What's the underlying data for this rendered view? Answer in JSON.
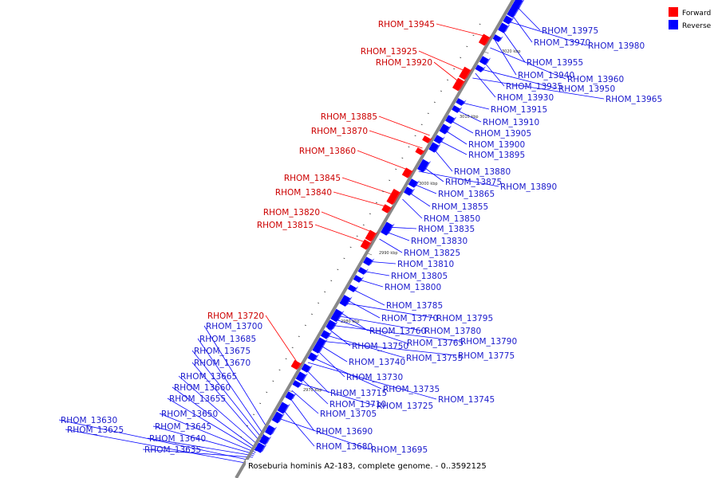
{
  "colors": {
    "forward": "#ff0000",
    "reverse": "#0000ff",
    "forward_label": "#cc0000",
    "reverse_label": "#1a1acc",
    "backbone": "#888888"
  },
  "legend": {
    "forward_label": "Forward",
    "reverse_label": "Reverse"
  },
  "caption": "Roseburia hominis A2-183, complete genome. - 0..3592125",
  "axis": {
    "tick_labels": [
      "2970 kbp",
      "2980 kbp",
      "2990 kbp",
      "3000 kbp",
      "3010 kbp",
      "3020 kbp"
    ]
  },
  "forward_genes": [
    "RHOM_13945",
    "RHOM_13925",
    "RHOM_13920",
    "RHOM_13885",
    "RHOM_13870",
    "RHOM_13860",
    "RHOM_13845",
    "RHOM_13840",
    "RHOM_13820",
    "RHOM_13815",
    "RHOM_13720"
  ],
  "reverse_genes": [
    "RHOM_13975",
    "RHOM_13970",
    "RHOM_13980",
    "RHOM_13955",
    "RHOM_13940",
    "RHOM_13960",
    "RHOM_13935",
    "RHOM_13950",
    "RHOM_13930",
    "RHOM_13965",
    "RHOM_13915",
    "RHOM_13910",
    "RHOM_13905",
    "RHOM_13900",
    "RHOM_13895",
    "RHOM_13880",
    "RHOM_13875",
    "RHOM_13890",
    "RHOM_13865",
    "RHOM_13855",
    "RHOM_13850",
    "RHOM_13835",
    "RHOM_13830",
    "RHOM_13825",
    "RHOM_13810",
    "RHOM_13805",
    "RHOM_13800",
    "RHOM_13785",
    "RHOM_13770",
    "RHOM_13795",
    "RHOM_13760",
    "RHOM_13780",
    "RHOM_13765",
    "RHOM_13790",
    "RHOM_13750",
    "RHOM_13755",
    "RHOM_13775",
    "RHOM_13740",
    "RHOM_13730",
    "RHOM_13735",
    "RHOM_13745",
    "RHOM_13715",
    "RHOM_13710",
    "RHOM_13725",
    "RHOM_13705",
    "RHOM_13690",
    "RHOM_13680",
    "RHOM_13695",
    "RHOM_13700",
    "RHOM_13685",
    "RHOM_13675",
    "RHOM_13670",
    "RHOM_13665",
    "RHOM_13660",
    "RHOM_13655",
    "RHOM_13650",
    "RHOM_13645",
    "RHOM_13640",
    "RHOM_13635",
    "RHOM_13630",
    "RHOM_13625"
  ]
}
